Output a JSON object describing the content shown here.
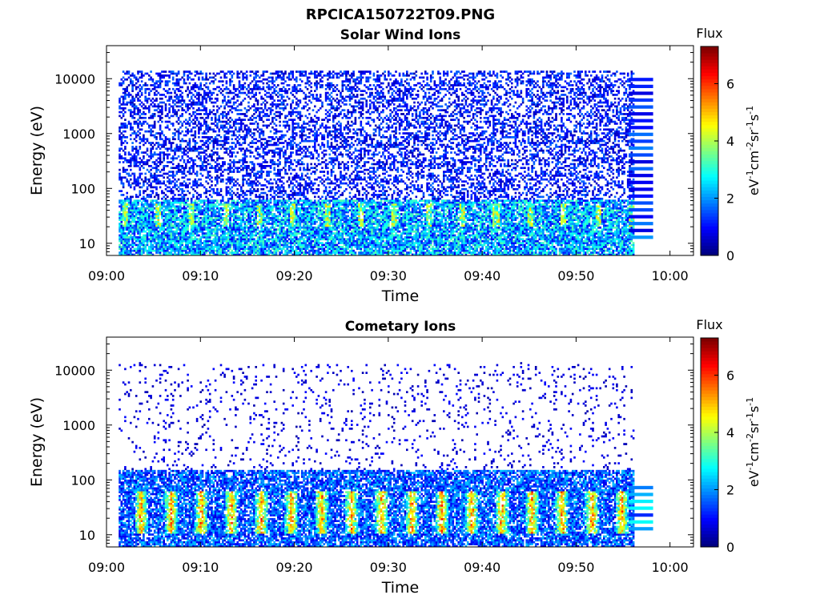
{
  "title": "RPCICA150722T09.PNG",
  "chart_data": [
    {
      "type": "heatmap",
      "title": "Solar Wind Ions",
      "xlabel": "Time",
      "ylabel": "Energy (eV)",
      "x_ticks": [
        "09:00",
        "09:10",
        "09:20",
        "09:30",
        "09:40",
        "09:50",
        "10:00"
      ],
      "x_range_minutes": [
        0,
        62.5
      ],
      "y_ticks": [
        "10",
        "100",
        "1000",
        "10000"
      ],
      "y_scale": "log",
      "ylim": [
        6,
        40000
      ],
      "colorbar": {
        "label": "Flux",
        "unit": "eV-1cm-2sr-1s-1",
        "ticks": [
          "0",
          "2",
          "4",
          "6"
        ],
        "range": [
          0,
          7.3
        ],
        "colormap": "jet"
      },
      "profile": "solar_wind"
    },
    {
      "type": "heatmap",
      "title": "Cometary Ions",
      "xlabel": "Time",
      "ylabel": "Energy (eV)",
      "x_ticks": [
        "09:00",
        "09:10",
        "09:20",
        "09:30",
        "09:40",
        "09:50",
        "10:00"
      ],
      "x_range_minutes": [
        0,
        62.5
      ],
      "y_ticks": [
        "10",
        "100",
        "1000",
        "10000"
      ],
      "y_scale": "log",
      "ylim": [
        6,
        40000
      ],
      "colorbar": {
        "label": "Flux",
        "unit": "eV-1cm-2sr-1s-1",
        "ticks": [
          "0",
          "2",
          "4",
          "6"
        ],
        "range": [
          0,
          7.3
        ],
        "colormap": "jet"
      },
      "profile": "cometary"
    }
  ]
}
